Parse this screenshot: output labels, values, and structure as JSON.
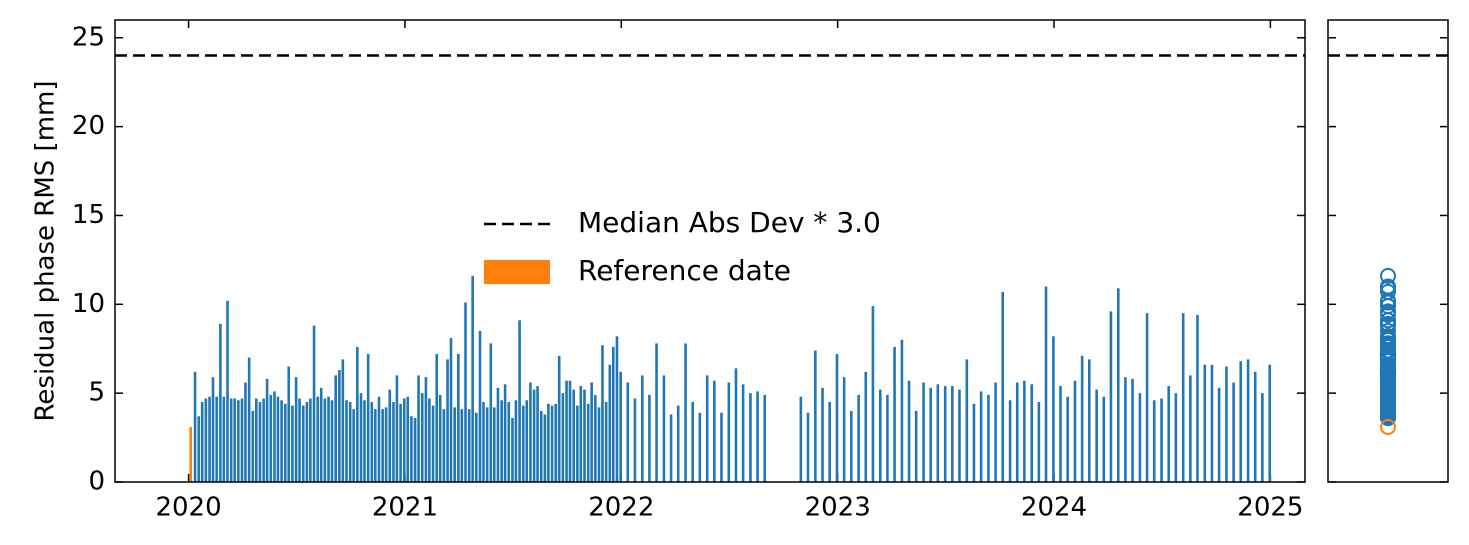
{
  "chart_data": {
    "type": "bar",
    "ylabel": "Residual phase RMS [mm]",
    "xlim": [
      2019.66,
      2025.16
    ],
    "xticks": [
      2020,
      2021,
      2022,
      2023,
      2024,
      2025
    ],
    "ylim": [
      0,
      26
    ],
    "yticks": [
      0,
      5,
      10,
      15,
      20,
      25
    ],
    "marginal": "scatter",
    "hlines": [
      {
        "name": "Median Abs Dev * 3.0",
        "value": 24,
        "color": "#000000",
        "style": "dashed"
      }
    ],
    "series": [
      {
        "color": "#1f77b4",
        "x": [
          2020.03,
          2020.047,
          2020.063,
          2020.08,
          2020.097,
          2020.113,
          2020.13,
          2020.147,
          2020.163,
          2020.18,
          2020.197,
          2020.213,
          2020.23,
          2020.247,
          2020.263,
          2020.28,
          2020.297,
          2020.313,
          2020.33,
          2020.347,
          2020.363,
          2020.38,
          2020.397,
          2020.413,
          2020.43,
          2020.447,
          2020.463,
          2020.48,
          2020.497,
          2020.513,
          2020.53,
          2020.547,
          2020.563,
          2020.58,
          2020.597,
          2020.613,
          2020.63,
          2020.647,
          2020.663,
          2020.68,
          2020.697,
          2020.713,
          2020.73,
          2020.747,
          2020.763,
          2020.78,
          2020.797,
          2020.813,
          2020.83,
          2020.847,
          2020.863,
          2020.88,
          2020.897,
          2020.913,
          2020.93,
          2020.947,
          2020.963,
          2020.98,
          2020.997,
          2021.013,
          2021.03,
          2021.047,
          2021.063,
          2021.08,
          2021.097,
          2021.113,
          2021.13,
          2021.147,
          2021.163,
          2021.18,
          2021.197,
          2021.213,
          2021.23,
          2021.247,
          2021.263,
          2021.28,
          2021.297,
          2021.313,
          2021.33,
          2021.347,
          2021.363,
          2021.38,
          2021.397,
          2021.413,
          2021.43,
          2021.447,
          2021.463,
          2021.48,
          2021.497,
          2021.513,
          2021.53,
          2021.547,
          2021.563,
          2021.58,
          2021.597,
          2021.613,
          2021.63,
          2021.647,
          2021.663,
          2021.68,
          2021.697,
          2021.713,
          2021.73,
          2021.747,
          2021.763,
          2021.78,
          2021.797,
          2021.813,
          2021.83,
          2021.847,
          2021.863,
          2021.88,
          2021.897,
          2021.913,
          2021.93,
          2021.947,
          2021.963,
          2021.98,
          2021.997,
          2022.03,
          2022.063,
          2022.097,
          2022.13,
          2022.163,
          2022.197,
          2022.23,
          2022.263,
          2022.297,
          2022.33,
          2022.363,
          2022.397,
          2022.43,
          2022.463,
          2022.497,
          2022.53,
          2022.563,
          2022.597,
          2022.63,
          2022.663,
          2022.83,
          2022.863,
          2022.897,
          2022.93,
          2022.963,
          2022.997,
          2023.03,
          2023.063,
          2023.097,
          2023.13,
          2023.163,
          2023.197,
          2023.23,
          2023.263,
          2023.297,
          2023.33,
          2023.363,
          2023.397,
          2023.43,
          2023.463,
          2023.497,
          2023.53,
          2023.563,
          2023.597,
          2023.63,
          2023.663,
          2023.697,
          2023.73,
          2023.763,
          2023.797,
          2023.83,
          2023.863,
          2023.897,
          2023.93,
          2023.963,
          2023.997,
          2024.03,
          2024.063,
          2024.097,
          2024.13,
          2024.163,
          2024.197,
          2024.23,
          2024.263,
          2024.297,
          2024.33,
          2024.363,
          2024.397,
          2024.43,
          2024.463,
          2024.497,
          2024.53,
          2024.563,
          2024.597,
          2024.63,
          2024.663,
          2024.697,
          2024.73,
          2024.763,
          2024.797,
          2024.83,
          2024.863,
          2024.897,
          2024.93,
          2024.963,
          2024.997
        ],
        "values": [
          6.2,
          3.7,
          4.5,
          4.7,
          4.8,
          5.9,
          4.8,
          8.9,
          4.8,
          10.2,
          4.7,
          4.7,
          4.6,
          4.7,
          5.6,
          7.0,
          4.0,
          4.7,
          4.5,
          4.7,
          5.8,
          4.9,
          5.1,
          4.8,
          4.6,
          4.4,
          6.5,
          4.3,
          5.9,
          4.7,
          4.3,
          4.5,
          4.7,
          8.8,
          4.8,
          5.3,
          4.7,
          4.8,
          4.6,
          6.0,
          6.3,
          6.9,
          4.6,
          4.5,
          4.1,
          7.6,
          5.0,
          4.6,
          7.2,
          4.5,
          4.1,
          4.8,
          4.1,
          4.2,
          5.2,
          4.5,
          6.0,
          4.4,
          4.7,
          4.8,
          3.7,
          3.6,
          6.0,
          5.0,
          5.9,
          4.7,
          4.3,
          7.2,
          4.9,
          4.1,
          6.9,
          8.1,
          4.2,
          7.2,
          4.1,
          10.1,
          4.1,
          11.6,
          3.9,
          8.5,
          4.5,
          4.2,
          7.8,
          4.2,
          5.3,
          4.6,
          5.5,
          4.5,
          3.6,
          4.6,
          9.1,
          4.3,
          4.6,
          5.6,
          5.2,
          5.4,
          4.0,
          3.8,
          4.4,
          4.3,
          4.4,
          7.1,
          5.0,
          5.7,
          5.7,
          5.2,
          4.3,
          5.4,
          5.2,
          4.4,
          5.6,
          4.9,
          4.2,
          7.7,
          4.5,
          6.6,
          7.6,
          8.2,
          6.2,
          5.6,
          4.7,
          6.0,
          4.9,
          7.8,
          6.0,
          3.8,
          4.3,
          7.8,
          4.5,
          3.9,
          6.0,
          5.7,
          3.9,
          5.6,
          6.4,
          5.5,
          5.0,
          5.1,
          4.9,
          4.8,
          3.9,
          7.4,
          5.3,
          4.5,
          7.2,
          5.9,
          4.0,
          4.9,
          6.2,
          9.9,
          5.2,
          4.9,
          7.6,
          8.0,
          5.7,
          4.0,
          5.6,
          5.3,
          5.5,
          5.4,
          5.4,
          5.2,
          6.9,
          4.4,
          5.1,
          4.9,
          5.6,
          10.7,
          4.6,
          5.6,
          5.7,
          5.5,
          4.5,
          11.0,
          8.2,
          5.4,
          4.8,
          5.7,
          7.1,
          6.9,
          5.2,
          4.8,
          9.6,
          10.9,
          5.9,
          5.8,
          5.0,
          9.5,
          4.6,
          4.7,
          5.4,
          5.0,
          9.5,
          6.0,
          9.4,
          6.6,
          6.6,
          5.3,
          6.5,
          5.6,
          6.8,
          6.9,
          6.2,
          5.0,
          6.6
        ]
      },
      {
        "name": "Reference date",
        "color": "#ff7f0e",
        "x": [
          2020.01
        ],
        "values": [
          3.1
        ]
      }
    ]
  }
}
